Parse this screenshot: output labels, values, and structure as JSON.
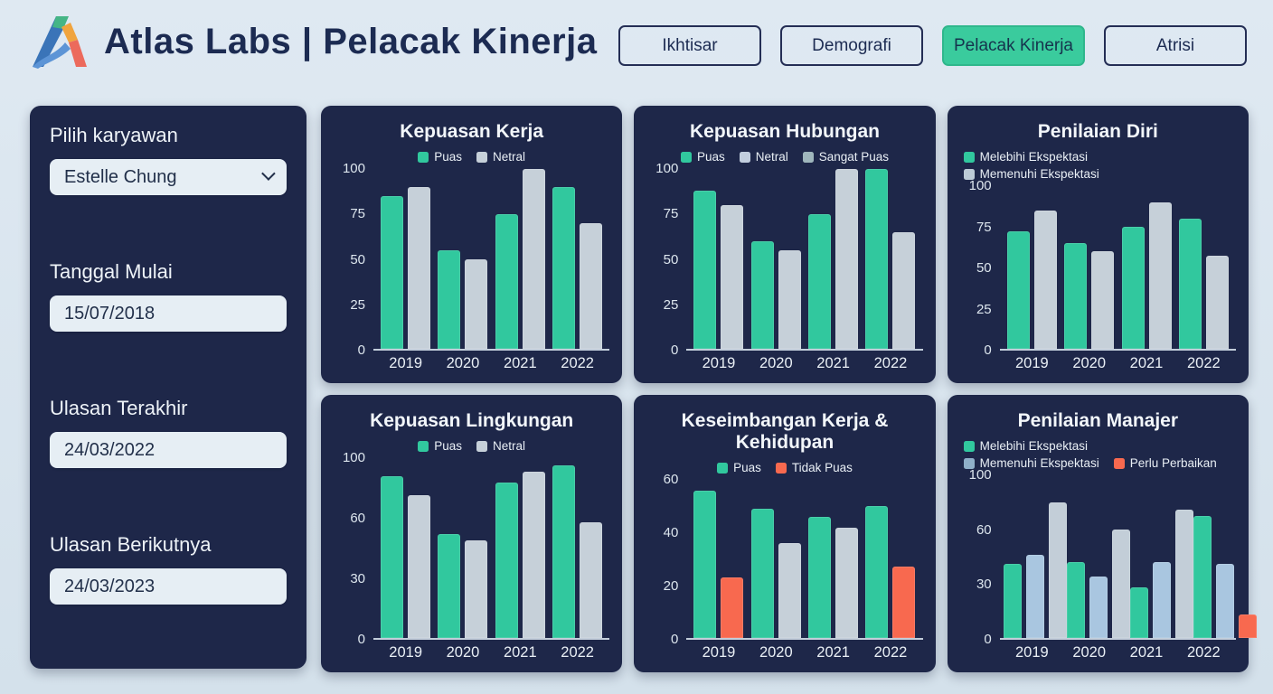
{
  "header": {
    "title": "Atlas Labs | Pelacak Kinerja",
    "nav": [
      {
        "label": "Ikhtisar",
        "active": false
      },
      {
        "label": "Demografi",
        "active": false
      },
      {
        "label": "Pelacak Kinerja",
        "active": true
      },
      {
        "label": "Atrisi",
        "active": false
      }
    ]
  },
  "sidebar": {
    "employee": {
      "label": "Pilih karyawan",
      "value": "Estelle Chung"
    },
    "fields": [
      {
        "name": "tanggal-mulai",
        "label": "Tanggal Mulai",
        "value": "15/07/2018"
      },
      {
        "name": "ulasan-terakhir",
        "label": "Ulasan Terakhir",
        "value": "24/03/2022"
      },
      {
        "name": "ulasan-berikutnya",
        "label": "Ulasan Berikutnya",
        "value": "24/03/2023"
      }
    ]
  },
  "colors": {
    "accent_teal": "#31c89e",
    "card_navy": "#1e2749",
    "page_background": "#dbe6ef",
    "bar_gray": "#c6d0d9",
    "bar_blue": "#a9c6e0",
    "bar_red": "#f8694f",
    "active_nav": "#3acb9d"
  },
  "chart_data": [
    {
      "type": "bar",
      "title": "Kepuasan Kerja",
      "categories": [
        "2019",
        "2020",
        "2021",
        "2022"
      ],
      "yticks": [
        0,
        25,
        50,
        75,
        100
      ],
      "legend_align": "center",
      "legend": [
        {
          "label": "Puas",
          "color": "#31c89e"
        },
        {
          "label": "Netral",
          "color": "#c6d0d9"
        }
      ],
      "series": [
        {
          "name": "Puas",
          "color": "#31c89e",
          "values": [
            85,
            55,
            75,
            90
          ]
        },
        {
          "name": "Netral",
          "color": "#c6d0d9",
          "values": [
            90,
            50,
            100,
            70
          ]
        }
      ]
    },
    {
      "type": "bar",
      "title": "Kepuasan Hubungan",
      "categories": [
        "2019",
        "2020",
        "2021",
        "2022"
      ],
      "yticks": [
        0,
        25,
        50,
        75,
        100
      ],
      "legend_align": "center",
      "legend": [
        {
          "label": "Puas",
          "color": "#31c89e"
        },
        {
          "label": "Netral",
          "color": "#c2cede"
        },
        {
          "label": "Sangat Puas",
          "color": "#9fb6bc"
        }
      ],
      "series": [
        {
          "name": "Puas",
          "color": "#31c89e",
          "values": [
            88,
            60,
            75,
            100
          ]
        },
        {
          "name": "Netral",
          "color": "#c6d0d9",
          "values": [
            80,
            55,
            100,
            65
          ]
        }
      ]
    },
    {
      "type": "bar",
      "title": "Penilaian Diri",
      "categories": [
        "2019",
        "2020",
        "2021",
        "2022"
      ],
      "yticks": [
        0,
        25,
        50,
        75,
        100
      ],
      "legend_align": "left",
      "legend": [
        {
          "label": "Melebihi Ekspektasi",
          "color": "#31c89e"
        },
        {
          "label": "Memenuhi Ekspektasi",
          "color": "#bccbd6"
        }
      ],
      "series": [
        {
          "name": "Melebihi Ekspektasi",
          "color": "#31c89e",
          "values": [
            72,
            65,
            75,
            80
          ]
        },
        {
          "name": "Memenuhi Ekspektasi",
          "color": "#c6d0d9",
          "values": [
            85,
            60,
            90,
            57
          ]
        }
      ]
    },
    {
      "type": "bar",
      "title": "Kepuasan Lingkungan",
      "categories": [
        "2019",
        "2020",
        "2021",
        "2022"
      ],
      "yticks": [
        0,
        30,
        60,
        100
      ],
      "legend_align": "center",
      "legend": [
        {
          "label": "Puas",
          "color": "#31c89e"
        },
        {
          "label": "Netral",
          "color": "#c6d0d9"
        }
      ],
      "series": [
        {
          "name": "Puas",
          "color": "#31c89e",
          "values": [
            88,
            52,
            84,
            95
          ]
        },
        {
          "name": "Netral",
          "color": "#c6d0d9",
          "values": [
            75,
            49,
            91,
            58
          ]
        }
      ]
    },
    {
      "type": "bar",
      "title": "Keseimbangan Kerja & Kehidupan",
      "categories": [
        "2019",
        "2020",
        "2021",
        "2022"
      ],
      "yticks": [
        0,
        20,
        40,
        60
      ],
      "legend_align": "center",
      "legend": [
        {
          "label": "Puas",
          "color": "#31c89e"
        },
        {
          "label": "Tidak Puas",
          "color": "#f8694f"
        }
      ],
      "series": [
        {
          "name": "Puas",
          "color": "#31c89e",
          "values": [
            56,
            49,
            46,
            50
          ]
        },
        {
          "name": "Tidak Puas",
          "color": "#f8694f",
          "colors": [
            "#f8694f",
            "#c6d0d9",
            "#c6d0d9",
            "#f8694f"
          ],
          "values": [
            23,
            36,
            42,
            27
          ]
        }
      ]
    },
    {
      "type": "bar",
      "title": "Penilaian Manajer",
      "categories": [
        "2019",
        "2020",
        "2021",
        "2022"
      ],
      "yticks": [
        0,
        30,
        60,
        100
      ],
      "legend_align": "left",
      "legend": [
        {
          "label": "Melebihi Ekspektasi",
          "color": "#31c89e"
        },
        {
          "label": "Memenuhi Ekspektasi",
          "color": "#8fb0c9"
        },
        {
          "label": "Perlu Perbaikan",
          "color": "#f8694f"
        }
      ],
      "series": [
        {
          "name": "Melebihi Ekspektasi",
          "color": "#31c89e",
          "values": [
            41,
            42,
            28,
            70
          ]
        },
        {
          "name": "Memenuhi Ekspektasi",
          "color": "#a9c6e0",
          "values": [
            46,
            34,
            42,
            41
          ]
        },
        {
          "name": "Perlu Perbaikan",
          "color": "#f8694f",
          "colors": [
            "#c3ced8",
            "#c3ced8",
            "#c3ced8",
            "#f8694f"
          ],
          "values": [
            80,
            60,
            75,
            13
          ]
        }
      ]
    }
  ]
}
